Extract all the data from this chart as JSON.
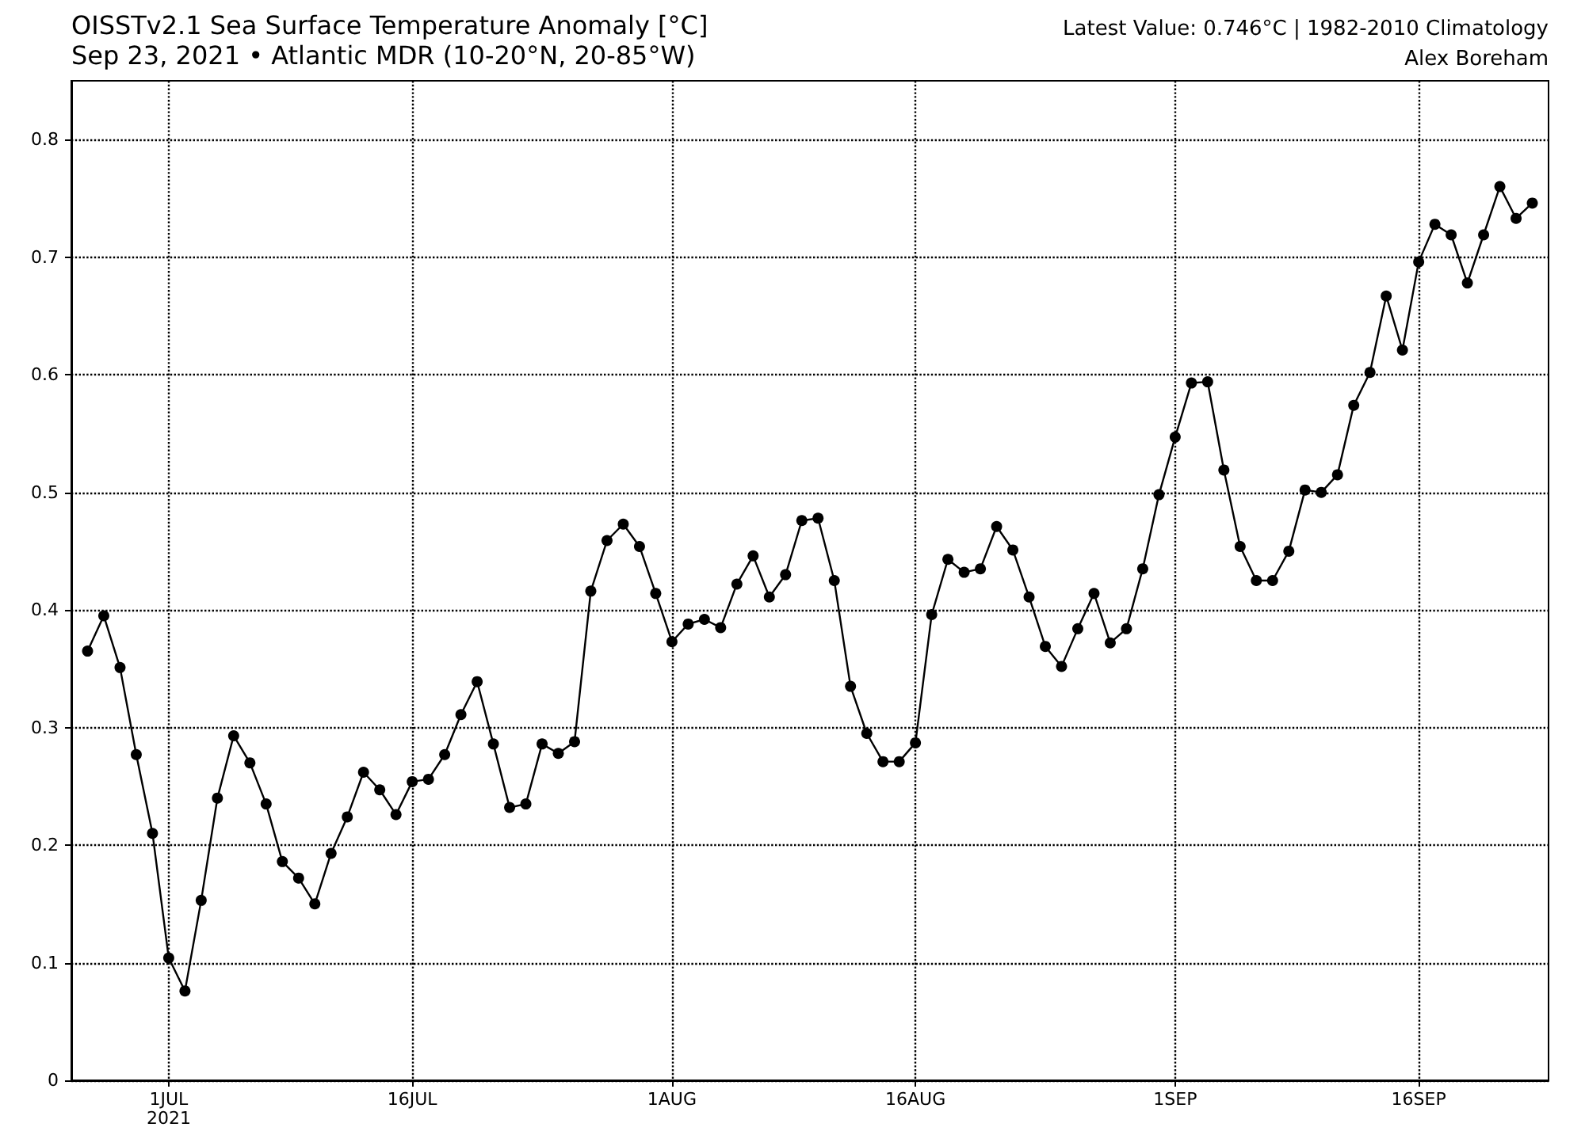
{
  "chart_data": {
    "type": "line",
    "title": "OISSTv2.1 Sea Surface Temperature Anomaly [°C]",
    "subtitle": "Sep 23, 2021 • Atlantic MDR (10-20°N, 20-85°W)",
    "annotations": [
      "Latest Value: 0.746°C | 1982-2010 Climatology",
      "Alex Boreham"
    ],
    "x": [
      "2021-06-26",
      "2021-06-27",
      "2021-06-28",
      "2021-06-29",
      "2021-06-30",
      "2021-07-01",
      "2021-07-02",
      "2021-07-03",
      "2021-07-04",
      "2021-07-05",
      "2021-07-06",
      "2021-07-07",
      "2021-07-08",
      "2021-07-09",
      "2021-07-10",
      "2021-07-11",
      "2021-07-12",
      "2021-07-13",
      "2021-07-14",
      "2021-07-15",
      "2021-07-16",
      "2021-07-17",
      "2021-07-18",
      "2021-07-19",
      "2021-07-20",
      "2021-07-21",
      "2021-07-22",
      "2021-07-23",
      "2021-07-24",
      "2021-07-25",
      "2021-07-26",
      "2021-07-27",
      "2021-07-28",
      "2021-07-29",
      "2021-07-30",
      "2021-07-31",
      "2021-08-01",
      "2021-08-02",
      "2021-08-03",
      "2021-08-04",
      "2021-08-05",
      "2021-08-06",
      "2021-08-07",
      "2021-08-08",
      "2021-08-09",
      "2021-08-10",
      "2021-08-11",
      "2021-08-12",
      "2021-08-13",
      "2021-08-14",
      "2021-08-15",
      "2021-08-16",
      "2021-08-17",
      "2021-08-18",
      "2021-08-19",
      "2021-08-20",
      "2021-08-21",
      "2021-08-22",
      "2021-08-23",
      "2021-08-24",
      "2021-08-25",
      "2021-08-26",
      "2021-08-27",
      "2021-08-28",
      "2021-08-29",
      "2021-08-30",
      "2021-08-31",
      "2021-09-01",
      "2021-09-02",
      "2021-09-03",
      "2021-09-04",
      "2021-09-05",
      "2021-09-06",
      "2021-09-07",
      "2021-09-08",
      "2021-09-09",
      "2021-09-10",
      "2021-09-11",
      "2021-09-12",
      "2021-09-13",
      "2021-09-14",
      "2021-09-15",
      "2021-09-16",
      "2021-09-17",
      "2021-09-18",
      "2021-09-19",
      "2021-09-20",
      "2021-09-21",
      "2021-09-22",
      "2021-09-23"
    ],
    "series": [
      {
        "color": "#000000",
        "values": [
          0.365,
          0.395,
          0.351,
          0.277,
          0.21,
          0.104,
          0.076,
          0.153,
          0.24,
          0.293,
          0.27,
          0.235,
          0.186,
          0.172,
          0.15,
          0.193,
          0.224,
          0.262,
          0.247,
          0.226,
          0.254,
          0.256,
          0.277,
          0.311,
          0.339,
          0.286,
          0.232,
          0.235,
          0.286,
          0.278,
          0.288,
          0.416,
          0.459,
          0.473,
          0.454,
          0.414,
          0.373,
          0.388,
          0.392,
          0.385,
          0.422,
          0.446,
          0.411,
          0.43,
          0.476,
          0.478,
          0.425,
          0.335,
          0.295,
          0.271,
          0.271,
          0.287,
          0.396,
          0.443,
          0.432,
          0.435,
          0.471,
          0.451,
          0.411,
          0.369,
          0.352,
          0.384,
          0.414,
          0.372,
          0.384,
          0.435,
          0.498,
          0.547,
          0.593,
          0.594,
          0.519,
          0.454,
          0.425,
          0.425,
          0.45,
          0.502,
          0.5,
          0.515,
          0.574,
          0.602,
          0.667,
          0.621,
          0.696,
          0.728,
          0.719,
          0.678,
          0.719,
          0.76,
          0.733,
          0.746
        ]
      }
    ],
    "xlim": [
      "2021-06-25",
      "2021-09-24"
    ],
    "xticks": [
      {
        "value": "2021-07-01",
        "label": "1JUL\n2021"
      },
      {
        "value": "2021-07-16",
        "label": "16JUL"
      },
      {
        "value": "2021-08-01",
        "label": "1AUG"
      },
      {
        "value": "2021-08-16",
        "label": "16AUG"
      },
      {
        "value": "2021-09-01",
        "label": "1SEP"
      },
      {
        "value": "2021-09-16",
        "label": "16SEP"
      }
    ],
    "ylim": [
      0,
      0.85
    ],
    "yticks": [
      0,
      0.1,
      0.2,
      0.3,
      0.4,
      0.5,
      0.6,
      0.7,
      0.8
    ],
    "grid": true,
    "marker": "circle",
    "line_style": "solid"
  }
}
